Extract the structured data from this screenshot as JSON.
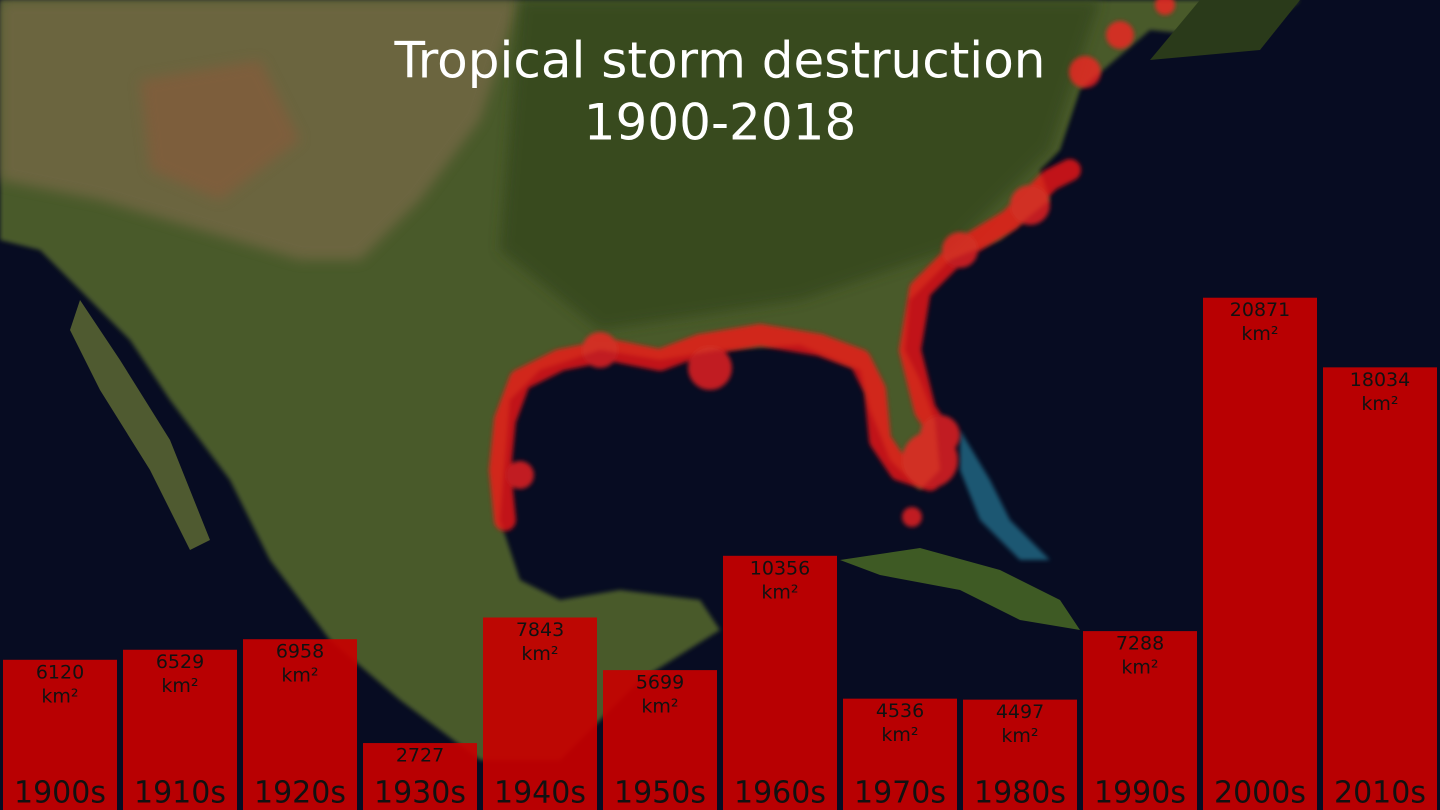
{
  "chart_data": {
    "type": "bar",
    "title": "Tropical storm destruction",
    "subtitle": "1900-2018",
    "categories": [
      "1900s",
      "1910s",
      "1920s",
      "1930s",
      "1940s",
      "1950s",
      "1960s",
      "1970s",
      "1980s",
      "1990s",
      "2000s",
      "2010s"
    ],
    "values": [
      6120,
      6529,
      6958,
      2727,
      7843,
      5699,
      10356,
      4536,
      4497,
      7288,
      20871,
      18034
    ],
    "unit": "km²",
    "color": "#c80000",
    "ylim": [
      0,
      33000
    ]
  }
}
